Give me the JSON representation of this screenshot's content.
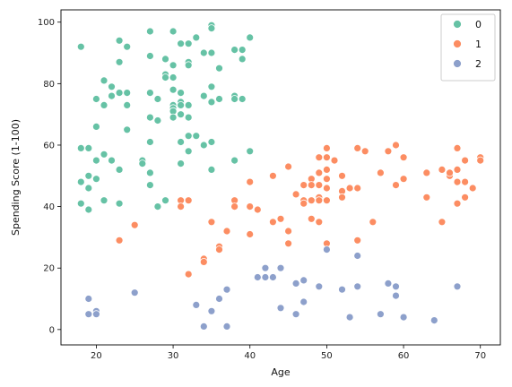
{
  "chart_data": {
    "type": "scatter",
    "xlabel": "Age",
    "ylabel": "Spending Score (1-100)",
    "xlim": [
      15.4,
      72.6
    ],
    "ylim": [
      -5.0,
      104.0
    ],
    "xticks": [
      20,
      30,
      40,
      50,
      60,
      70
    ],
    "yticks": [
      0,
      20,
      40,
      60,
      80,
      100
    ],
    "grid": false,
    "legend": {
      "placement": "top-right"
    },
    "series": [
      {
        "name": "0",
        "color": "#66c2a5",
        "points": [
          [
            18,
            92
          ],
          [
            18,
            59
          ],
          [
            18,
            48
          ],
          [
            18,
            41
          ],
          [
            19,
            59
          ],
          [
            19,
            50
          ],
          [
            19,
            46
          ],
          [
            19,
            39
          ],
          [
            20,
            75
          ],
          [
            20,
            66
          ],
          [
            20,
            55
          ],
          [
            20,
            49
          ],
          [
            21,
            81
          ],
          [
            21,
            73
          ],
          [
            21,
            57
          ],
          [
            21,
            42
          ],
          [
            22,
            79
          ],
          [
            22,
            76
          ],
          [
            22,
            55
          ],
          [
            23,
            94
          ],
          [
            23,
            87
          ],
          [
            23,
            77
          ],
          [
            23,
            52
          ],
          [
            23,
            41
          ],
          [
            24,
            92
          ],
          [
            24,
            77
          ],
          [
            24,
            73
          ],
          [
            24,
            65
          ],
          [
            26,
            55
          ],
          [
            26,
            54
          ],
          [
            27,
            97
          ],
          [
            27,
            89
          ],
          [
            27,
            77
          ],
          [
            27,
            69
          ],
          [
            27,
            61
          ],
          [
            27,
            51
          ],
          [
            27,
            47
          ],
          [
            28,
            75
          ],
          [
            28,
            68
          ],
          [
            28,
            40
          ],
          [
            29,
            88
          ],
          [
            29,
            83
          ],
          [
            29,
            82
          ],
          [
            29,
            42
          ],
          [
            30,
            97
          ],
          [
            30,
            86
          ],
          [
            30,
            82
          ],
          [
            30,
            78
          ],
          [
            30,
            73
          ],
          [
            30,
            72
          ],
          [
            30,
            71
          ],
          [
            30,
            69
          ],
          [
            31,
            93
          ],
          [
            31,
            77
          ],
          [
            31,
            74
          ],
          [
            31,
            73
          ],
          [
            31,
            70
          ],
          [
            31,
            61
          ],
          [
            31,
            54
          ],
          [
            32,
            93
          ],
          [
            32,
            87
          ],
          [
            32,
            86
          ],
          [
            32,
            73
          ],
          [
            32,
            69
          ],
          [
            32,
            63
          ],
          [
            32,
            58
          ],
          [
            33,
            95
          ],
          [
            33,
            63
          ],
          [
            34,
            90
          ],
          [
            34,
            76
          ],
          [
            34,
            60
          ],
          [
            35,
            99
          ],
          [
            35,
            98
          ],
          [
            35,
            90
          ],
          [
            35,
            79
          ],
          [
            35,
            74
          ],
          [
            35,
            61
          ],
          [
            35,
            52
          ],
          [
            36,
            85
          ],
          [
            36,
            75
          ],
          [
            38,
            91
          ],
          [
            38,
            76
          ],
          [
            38,
            75
          ],
          [
            38,
            55
          ],
          [
            39,
            91
          ],
          [
            39,
            88
          ],
          [
            39,
            75
          ],
          [
            40,
            95
          ],
          [
            40,
            58
          ]
        ]
      },
      {
        "name": "1",
        "color": "#fc8d62",
        "points": [
          [
            23,
            29
          ],
          [
            25,
            34
          ],
          [
            31,
            42
          ],
          [
            31,
            40
          ],
          [
            32,
            42
          ],
          [
            32,
            18
          ],
          [
            34,
            23
          ],
          [
            34,
            22
          ],
          [
            35,
            35
          ],
          [
            36,
            27
          ],
          [
            36,
            26
          ],
          [
            37,
            32
          ],
          [
            38,
            42
          ],
          [
            38,
            40
          ],
          [
            40,
            48
          ],
          [
            40,
            40
          ],
          [
            40,
            31
          ],
          [
            41,
            39
          ],
          [
            43,
            50
          ],
          [
            43,
            35
          ],
          [
            44,
            36
          ],
          [
            45,
            53
          ],
          [
            45,
            32
          ],
          [
            45,
            28
          ],
          [
            46,
            44
          ],
          [
            47,
            47
          ],
          [
            47,
            42
          ],
          [
            47,
            41
          ],
          [
            48,
            49
          ],
          [
            48,
            47
          ],
          [
            48,
            42
          ],
          [
            48,
            36
          ],
          [
            49,
            56
          ],
          [
            49,
            51
          ],
          [
            49,
            47
          ],
          [
            49,
            43
          ],
          [
            49,
            42
          ],
          [
            49,
            35
          ],
          [
            50,
            59
          ],
          [
            50,
            56
          ],
          [
            50,
            52
          ],
          [
            50,
            49
          ],
          [
            50,
            46
          ],
          [
            50,
            42
          ],
          [
            50,
            28
          ],
          [
            51,
            55
          ],
          [
            52,
            50
          ],
          [
            52,
            45
          ],
          [
            52,
            43
          ],
          [
            53,
            46
          ],
          [
            54,
            59
          ],
          [
            54,
            46
          ],
          [
            54,
            29
          ],
          [
            55,
            58
          ],
          [
            56,
            35
          ],
          [
            57,
            51
          ],
          [
            58,
            58
          ],
          [
            59,
            60
          ],
          [
            59,
            47
          ],
          [
            60,
            56
          ],
          [
            60,
            49
          ],
          [
            63,
            51
          ],
          [
            63,
            43
          ],
          [
            65,
            52
          ],
          [
            65,
            35
          ],
          [
            66,
            50
          ],
          [
            66,
            51
          ],
          [
            67,
            59
          ],
          [
            67,
            52
          ],
          [
            67,
            48
          ],
          [
            67,
            41
          ],
          [
            68,
            55
          ],
          [
            68,
            48
          ],
          [
            68,
            43
          ],
          [
            69,
            46
          ],
          [
            70,
            56
          ],
          [
            70,
            55
          ]
        ]
      },
      {
        "name": "2",
        "color": "#8da0cb",
        "points": [
          [
            19,
            10
          ],
          [
            19,
            5
          ],
          [
            20,
            6
          ],
          [
            20,
            5
          ],
          [
            25,
            12
          ],
          [
            33,
            8
          ],
          [
            34,
            1
          ],
          [
            35,
            6
          ],
          [
            36,
            10
          ],
          [
            37,
            13
          ],
          [
            37,
            1
          ],
          [
            41,
            17
          ],
          [
            42,
            20
          ],
          [
            42,
            17
          ],
          [
            43,
            17
          ],
          [
            44,
            20
          ],
          [
            44,
            7
          ],
          [
            46,
            15
          ],
          [
            46,
            5
          ],
          [
            47,
            16
          ],
          [
            47,
            9
          ],
          [
            49,
            14
          ],
          [
            50,
            26
          ],
          [
            52,
            13
          ],
          [
            53,
            4
          ],
          [
            54,
            24
          ],
          [
            54,
            14
          ],
          [
            57,
            5
          ],
          [
            58,
            15
          ],
          [
            59,
            14
          ],
          [
            59,
            11
          ],
          [
            60,
            4
          ],
          [
            64,
            3
          ],
          [
            67,
            14
          ]
        ]
      }
    ]
  }
}
